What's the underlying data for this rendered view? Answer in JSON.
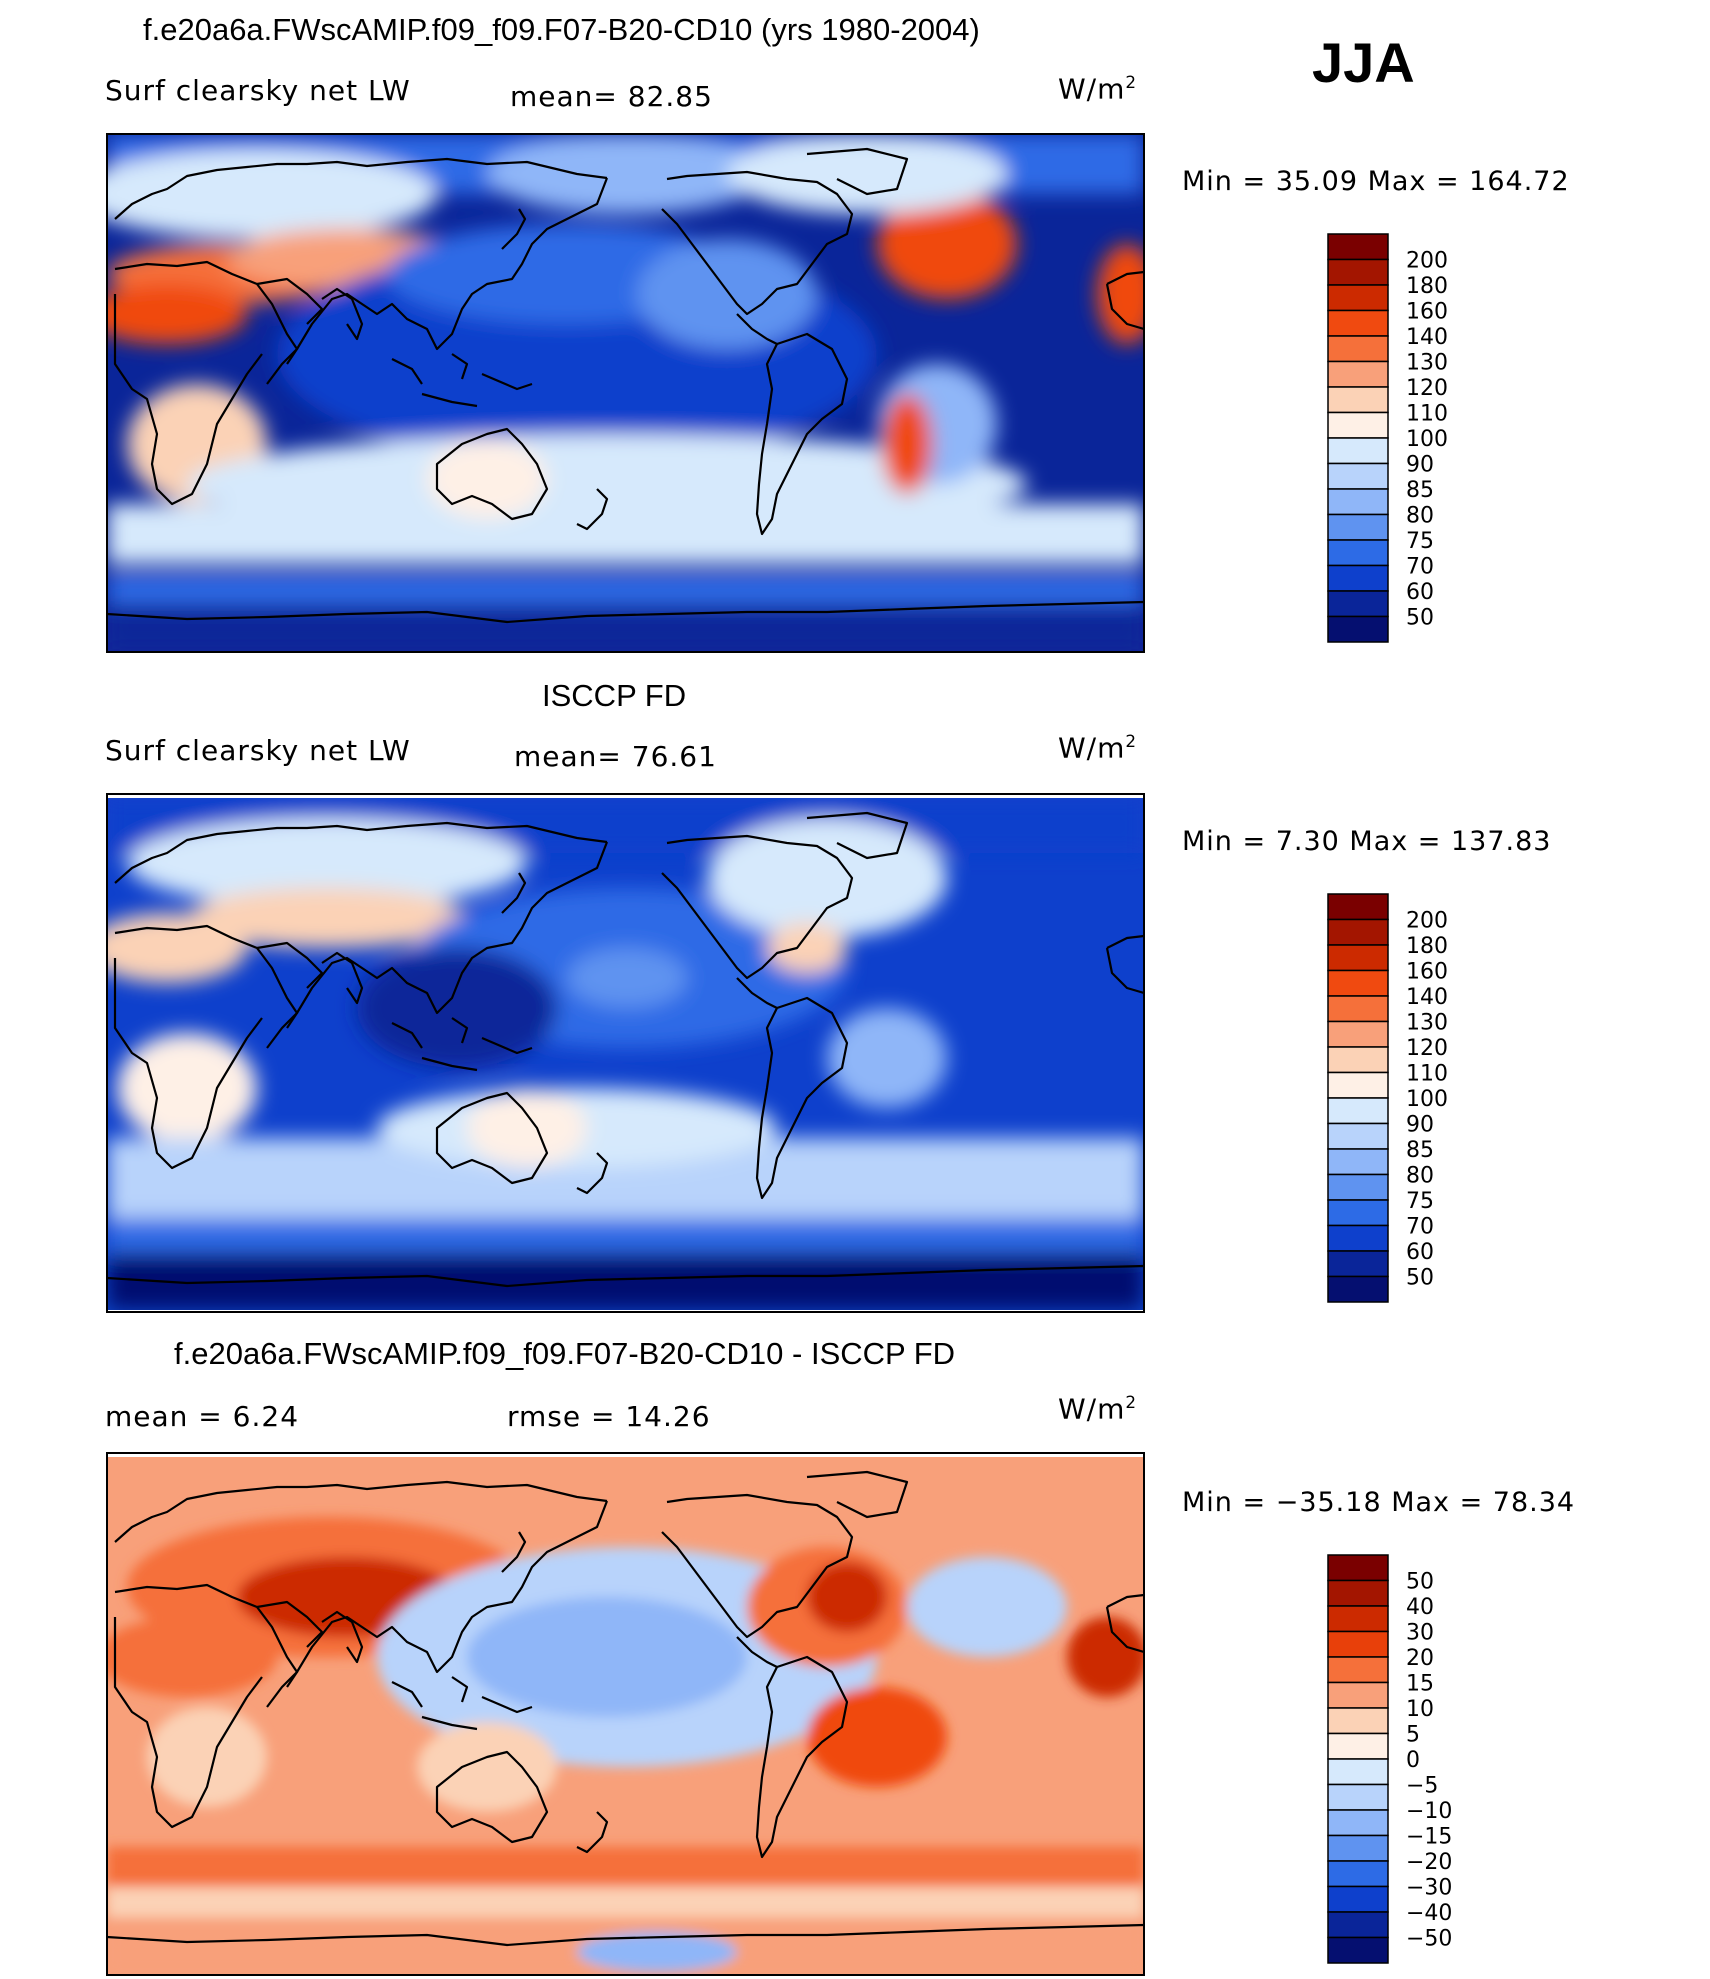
{
  "season": "JJA",
  "units_main": "W/m",
  "units_sup": "2",
  "panels": [
    {
      "title": "f.e20a6a.FWscAMIP.f09_f09.F07-B20-CD10 (yrs 1980-2004)",
      "variable": "Surf clearsky net LW",
      "stat1": "mean=  82.85",
      "minmax": "Min =   35.09 Max = 164.72",
      "levels": [
        "200",
        "180",
        "160",
        "140",
        "130",
        "120",
        "110",
        "100",
        "90",
        "85",
        "80",
        "75",
        "70",
        "60",
        "50"
      ]
    },
    {
      "title": "ISCCP FD",
      "variable": "Surf clearsky net LW",
      "stat1": "mean=  76.61",
      "minmax": "Min =    7.30 Max = 137.83",
      "levels": [
        "200",
        "180",
        "160",
        "140",
        "130",
        "120",
        "110",
        "100",
        "90",
        "85",
        "80",
        "75",
        "70",
        "60",
        "50"
      ]
    },
    {
      "title": "f.e20a6a.FWscAMIP.f09_f09.F07-B20-CD10 - ISCCP FD",
      "stat0": "mean =    6.24",
      "stat1": "rmse =   14.26",
      "minmax": "Min = −35.18 Max =   78.34",
      "levels": [
        "50",
        "40",
        "30",
        "20",
        "15",
        "10",
        "5",
        "0",
        "−5",
        "−10",
        "−15",
        "−20",
        "−30",
        "−40",
        "−50"
      ]
    }
  ],
  "chart_data": [
    {
      "type": "heatmap",
      "title": "f.e20a6a.FWscAMIP.f09_f09.F07-B20-CD10 (yrs 1980-2004)",
      "variable": "Surf clearsky net LW",
      "units": "W/m2",
      "mean": 82.85,
      "min": 35.09,
      "max": 164.72,
      "contour_levels": [
        50,
        60,
        70,
        75,
        80,
        85,
        90,
        100,
        110,
        120,
        130,
        140,
        160,
        180,
        200
      ]
    },
    {
      "type": "heatmap",
      "title": "ISCCP FD",
      "variable": "Surf clearsky net LW",
      "units": "W/m2",
      "mean": 76.61,
      "min": 7.3,
      "max": 137.83,
      "contour_levels": [
        50,
        60,
        70,
        75,
        80,
        85,
        90,
        100,
        110,
        120,
        130,
        140,
        160,
        180,
        200
      ]
    },
    {
      "type": "heatmap",
      "title": "f.e20a6a.FWscAMIP.f09_f09.F07-B20-CD10 - ISCCP FD",
      "units": "W/m2",
      "mean": 6.24,
      "rmse": 14.26,
      "min": -35.18,
      "max": 78.34,
      "contour_levels": [
        -50,
        -40,
        -30,
        -20,
        -15,
        -10,
        -5,
        0,
        5,
        10,
        15,
        20,
        30,
        40,
        50
      ]
    }
  ],
  "colors": {
    "abs_scale": [
      "#7a0000",
      "#a31500",
      "#cc2a00",
      "#f04a10",
      "#f5703a",
      "#f8a07a",
      "#fbd2b6",
      "#fef0e6",
      "#d6e9fc",
      "#b8d3fb",
      "#8fb6f8",
      "#5f93f0",
      "#2d6be6",
      "#0e40cc",
      "#0a2599",
      "#050f70"
    ],
    "diff_scale": [
      "#7a0000",
      "#a31500",
      "#cc2a00",
      "#e8400a",
      "#f5703a",
      "#f8a07a",
      "#fbd2b6",
      "#fef0e6",
      "#d6e9fc",
      "#b8d3fb",
      "#8fb6f8",
      "#5f93f0",
      "#2d6be6",
      "#0e40cc",
      "#0a2599",
      "#050f70"
    ]
  }
}
